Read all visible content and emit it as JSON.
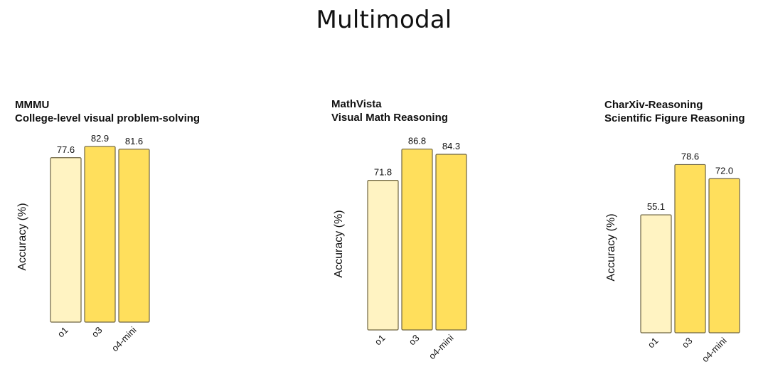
{
  "title": "Multimodal",
  "colors": {
    "o1": "#FFF3C2",
    "o3": "#FFDF5C",
    "o4-mini": "#FFDF5C",
    "bar_stroke": "#6E6440"
  },
  "chart_data": [
    {
      "type": "bar",
      "title": "MMMU",
      "subtitle": "College-level visual problem-solving",
      "ylabel": "Accuracy (%)",
      "xlabel": "",
      "categories": [
        "o1",
        "o3",
        "o4-mini"
      ],
      "values": [
        77.6,
        82.9,
        81.6
      ],
      "value_labels": [
        "77.6",
        "82.9",
        "81.6"
      ]
    },
    {
      "type": "bar",
      "title": "MathVista",
      "subtitle": "Visual Math Reasoning",
      "ylabel": "Accuracy (%)",
      "xlabel": "",
      "categories": [
        "o1",
        "o3",
        "o4-mini"
      ],
      "values": [
        71.8,
        86.8,
        84.3
      ],
      "value_labels": [
        "71.8",
        "86.8",
        "84.3"
      ]
    },
    {
      "type": "bar",
      "title": "CharXiv-Reasoning",
      "subtitle": "Scientific Figure Reasoning",
      "ylabel": "Accuracy (%)",
      "xlabel": "",
      "categories": [
        "o1",
        "o3",
        "o4-mini"
      ],
      "values": [
        55.1,
        78.6,
        72.0
      ],
      "value_labels": [
        "55.1",
        "78.6",
        "72.0"
      ]
    }
  ]
}
